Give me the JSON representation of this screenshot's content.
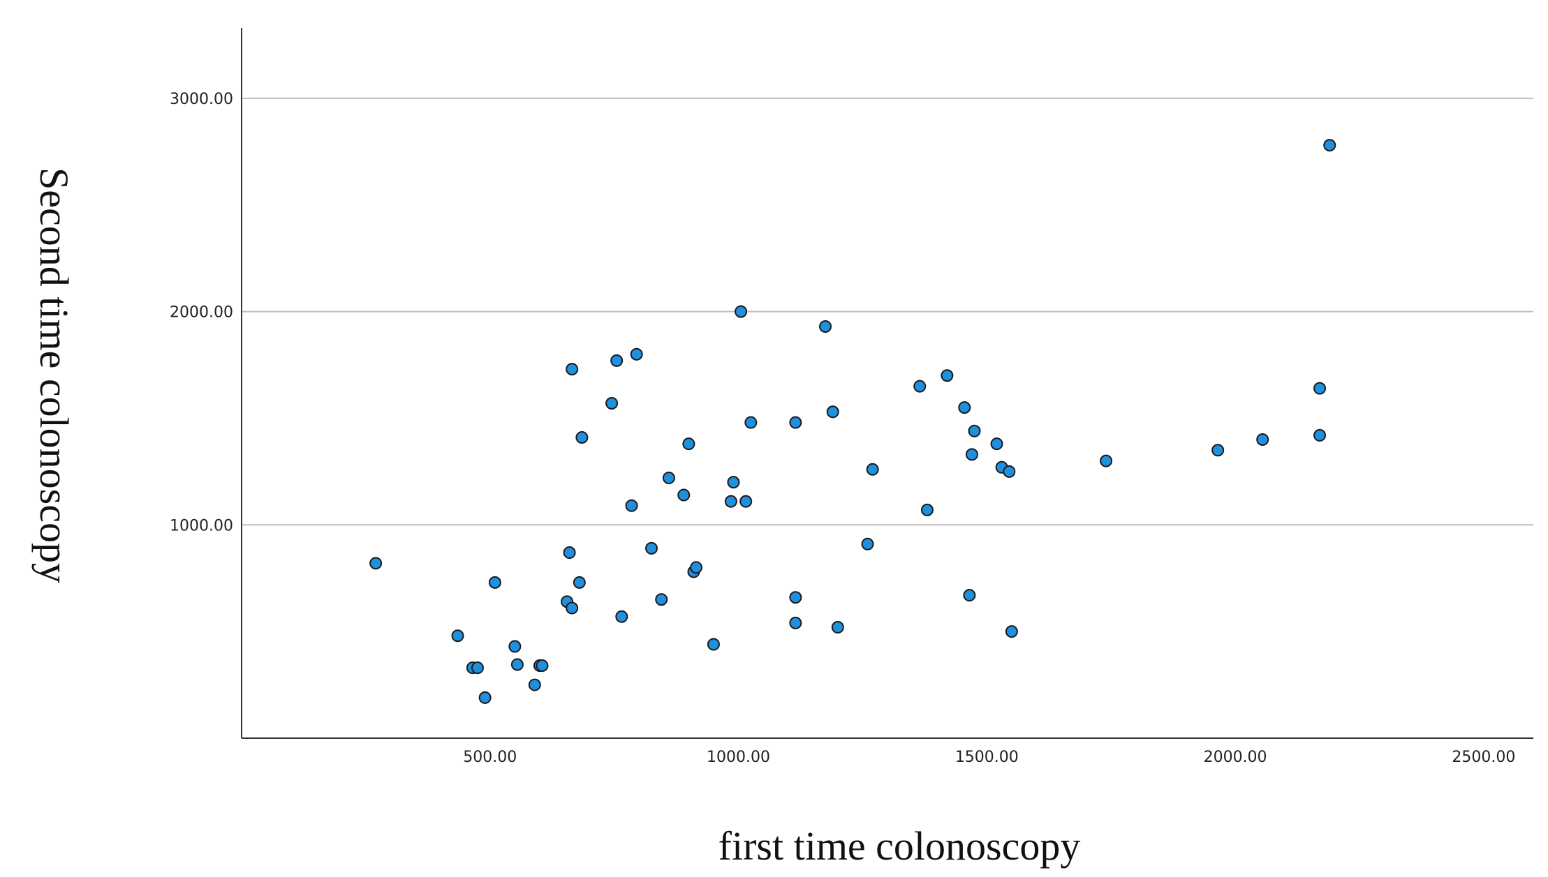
{
  "chart_data": {
    "type": "scatter",
    "xlabel": "first time colonoscopy",
    "ylabel": "Second time colonoscopy",
    "xlim": [
      0,
      2600
    ],
    "ylim": [
      0,
      3330
    ],
    "xticks": [
      500,
      1000,
      1500,
      2000,
      2500
    ],
    "xtick_labels": [
      "500.00",
      "1000.00",
      "1500.00",
      "2000.00",
      "2500.00"
    ],
    "yticks": [
      1000,
      2000,
      3000
    ],
    "ytick_labels": [
      "1000.00",
      "2000.00",
      "3000.00"
    ],
    "grid": "horizontal",
    "point_color": "#1f8fe0",
    "points": [
      [
        270,
        820
      ],
      [
        435,
        480
      ],
      [
        465,
        330
      ],
      [
        475,
        330
      ],
      [
        490,
        190
      ],
      [
        510,
        730
      ],
      [
        550,
        430
      ],
      [
        555,
        345
      ],
      [
        590,
        250
      ],
      [
        600,
        340
      ],
      [
        605,
        340
      ],
      [
        655,
        640
      ],
      [
        660,
        870
      ],
      [
        665,
        610
      ],
      [
        665,
        1730
      ],
      [
        680,
        730
      ],
      [
        685,
        1410
      ],
      [
        745,
        1570
      ],
      [
        755,
        1770
      ],
      [
        765,
        570
      ],
      [
        785,
        1090
      ],
      [
        795,
        1800
      ],
      [
        825,
        890
      ],
      [
        845,
        650
      ],
      [
        860,
        1220
      ],
      [
        890,
        1140
      ],
      [
        900,
        1380
      ],
      [
        910,
        780
      ],
      [
        915,
        800
      ],
      [
        950,
        440
      ],
      [
        985,
        1110
      ],
      [
        990,
        1200
      ],
      [
        1005,
        2000
      ],
      [
        1015,
        1110
      ],
      [
        1025,
        1480
      ],
      [
        1115,
        660
      ],
      [
        1115,
        1480
      ],
      [
        1115,
        540
      ],
      [
        1175,
        1930
      ],
      [
        1190,
        1530
      ],
      [
        1200,
        520
      ],
      [
        1260,
        910
      ],
      [
        1270,
        1260
      ],
      [
        1365,
        1650
      ],
      [
        1380,
        1070
      ],
      [
        1420,
        1700
      ],
      [
        1455,
        1550
      ],
      [
        1465,
        670
      ],
      [
        1470,
        1330
      ],
      [
        1475,
        1440
      ],
      [
        1520,
        1380
      ],
      [
        1530,
        1270
      ],
      [
        1545,
        1250
      ],
      [
        1550,
        500
      ],
      [
        1740,
        1300
      ],
      [
        1965,
        1350
      ],
      [
        2055,
        1400
      ],
      [
        2170,
        1420
      ],
      [
        2170,
        1640
      ],
      [
        2190,
        2780
      ]
    ]
  }
}
